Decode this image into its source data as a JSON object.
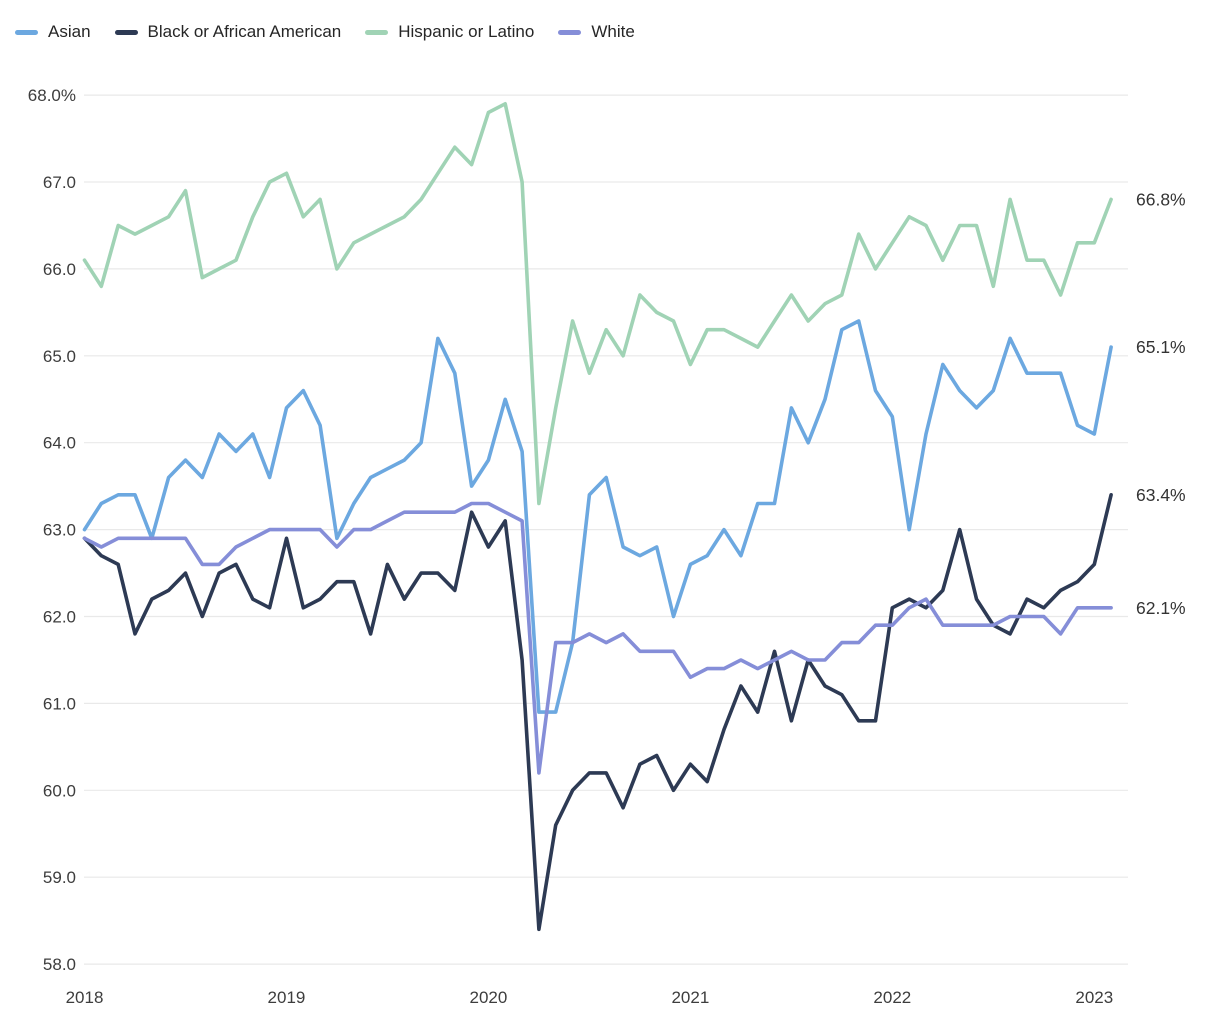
{
  "chart_data": {
    "type": "line",
    "title": "",
    "xlabel": "",
    "ylabel": "",
    "unit": "%",
    "ylim": [
      58.0,
      68.0
    ],
    "grid": true,
    "grid_color": "#e9e9e9",
    "legend_position": "top-left",
    "x_frequency": "monthly",
    "x_range": [
      "2018-01",
      "2023-02"
    ],
    "y_ticks": [
      {
        "value": 68,
        "label": "68.0%"
      },
      {
        "value": 67,
        "label": "67.0"
      },
      {
        "value": 66,
        "label": "66.0"
      },
      {
        "value": 65,
        "label": "65.0"
      },
      {
        "value": 64,
        "label": "64.0"
      },
      {
        "value": 63,
        "label": "63.0"
      },
      {
        "value": 62,
        "label": "62.0"
      },
      {
        "value": 61,
        "label": "61.0"
      },
      {
        "value": 60,
        "label": "60.0"
      },
      {
        "value": 59,
        "label": "59.0"
      },
      {
        "value": 58,
        "label": "58.0"
      }
    ],
    "x_ticks": [
      {
        "month": 0,
        "label": "2018"
      },
      {
        "month": 12,
        "label": "2019"
      },
      {
        "month": 24,
        "label": "2020"
      },
      {
        "month": 36,
        "label": "2021"
      },
      {
        "month": 48,
        "label": "2022"
      },
      {
        "month": 60,
        "label": "2023"
      }
    ],
    "series": [
      {
        "name": "Asian",
        "color": "#6ca8e0",
        "end_label": "65.1%",
        "values": [
          63.0,
          63.3,
          63.4,
          63.4,
          62.9,
          63.6,
          63.8,
          63.6,
          64.1,
          63.9,
          64.1,
          63.6,
          64.4,
          64.6,
          64.2,
          62.9,
          63.3,
          63.6,
          63.7,
          63.8,
          64.0,
          65.2,
          64.8,
          63.5,
          63.8,
          64.5,
          63.9,
          60.9,
          60.9,
          61.7,
          63.4,
          63.6,
          62.8,
          62.7,
          62.8,
          62.0,
          62.6,
          62.7,
          63.0,
          62.7,
          63.3,
          63.3,
          64.4,
          64.0,
          64.5,
          65.3,
          65.4,
          64.6,
          64.3,
          63.0,
          64.1,
          64.9,
          64.6,
          64.4,
          64.6,
          65.2,
          64.8,
          64.8,
          64.8,
          64.2,
          64.1,
          65.1
        ]
      },
      {
        "name": "Black or African American",
        "color": "#2d3a54",
        "end_label": "63.4%",
        "values": [
          62.9,
          62.7,
          62.6,
          61.8,
          62.2,
          62.3,
          62.5,
          62.0,
          62.5,
          62.6,
          62.2,
          62.1,
          62.9,
          62.1,
          62.2,
          62.4,
          62.4,
          61.8,
          62.6,
          62.2,
          62.5,
          62.5,
          62.3,
          63.2,
          62.8,
          63.1,
          61.5,
          58.4,
          59.6,
          60.0,
          60.2,
          60.2,
          59.8,
          60.3,
          60.4,
          60.0,
          60.3,
          60.1,
          60.7,
          61.2,
          60.9,
          61.6,
          60.8,
          61.5,
          61.2,
          61.1,
          60.8,
          60.8,
          62.1,
          62.2,
          62.1,
          62.3,
          63.0,
          62.2,
          61.9,
          61.8,
          62.2,
          62.1,
          62.3,
          62.4,
          62.6,
          63.4
        ]
      },
      {
        "name": "Hispanic or Latino",
        "color": "#a0d3b5",
        "end_label": "66.8%",
        "values": [
          66.1,
          65.8,
          66.5,
          66.4,
          66.5,
          66.6,
          66.9,
          65.9,
          66.0,
          66.1,
          66.6,
          67.0,
          67.1,
          66.6,
          66.8,
          66.0,
          66.3,
          66.4,
          66.5,
          66.6,
          66.8,
          67.1,
          67.4,
          67.2,
          67.8,
          67.9,
          67.0,
          63.3,
          64.4,
          65.4,
          64.8,
          65.3,
          65.0,
          65.7,
          65.5,
          65.4,
          64.9,
          65.3,
          65.3,
          65.2,
          65.1,
          65.4,
          65.7,
          65.4,
          65.6,
          65.7,
          66.4,
          66.0,
          66.3,
          66.6,
          66.5,
          66.1,
          66.5,
          66.5,
          65.8,
          66.8,
          66.1,
          66.1,
          65.7,
          66.3,
          66.3,
          66.8
        ]
      },
      {
        "name": "White",
        "color": "#858ed8",
        "end_label": "62.1%",
        "values": [
          62.9,
          62.8,
          62.9,
          62.9,
          62.9,
          62.9,
          62.9,
          62.6,
          62.6,
          62.8,
          62.9,
          63.0,
          63.0,
          63.0,
          63.0,
          62.8,
          63.0,
          63.0,
          63.1,
          63.2,
          63.2,
          63.2,
          63.2,
          63.3,
          63.3,
          63.2,
          63.1,
          60.2,
          61.7,
          61.7,
          61.8,
          61.7,
          61.8,
          61.6,
          61.6,
          61.6,
          61.3,
          61.4,
          61.4,
          61.5,
          61.4,
          61.5,
          61.6,
          61.5,
          61.5,
          61.7,
          61.7,
          61.9,
          61.9,
          62.1,
          62.2,
          61.9,
          61.9,
          61.9,
          61.9,
          62.0,
          62.0,
          62.0,
          61.8,
          62.1,
          62.1,
          62.1
        ]
      }
    ]
  }
}
